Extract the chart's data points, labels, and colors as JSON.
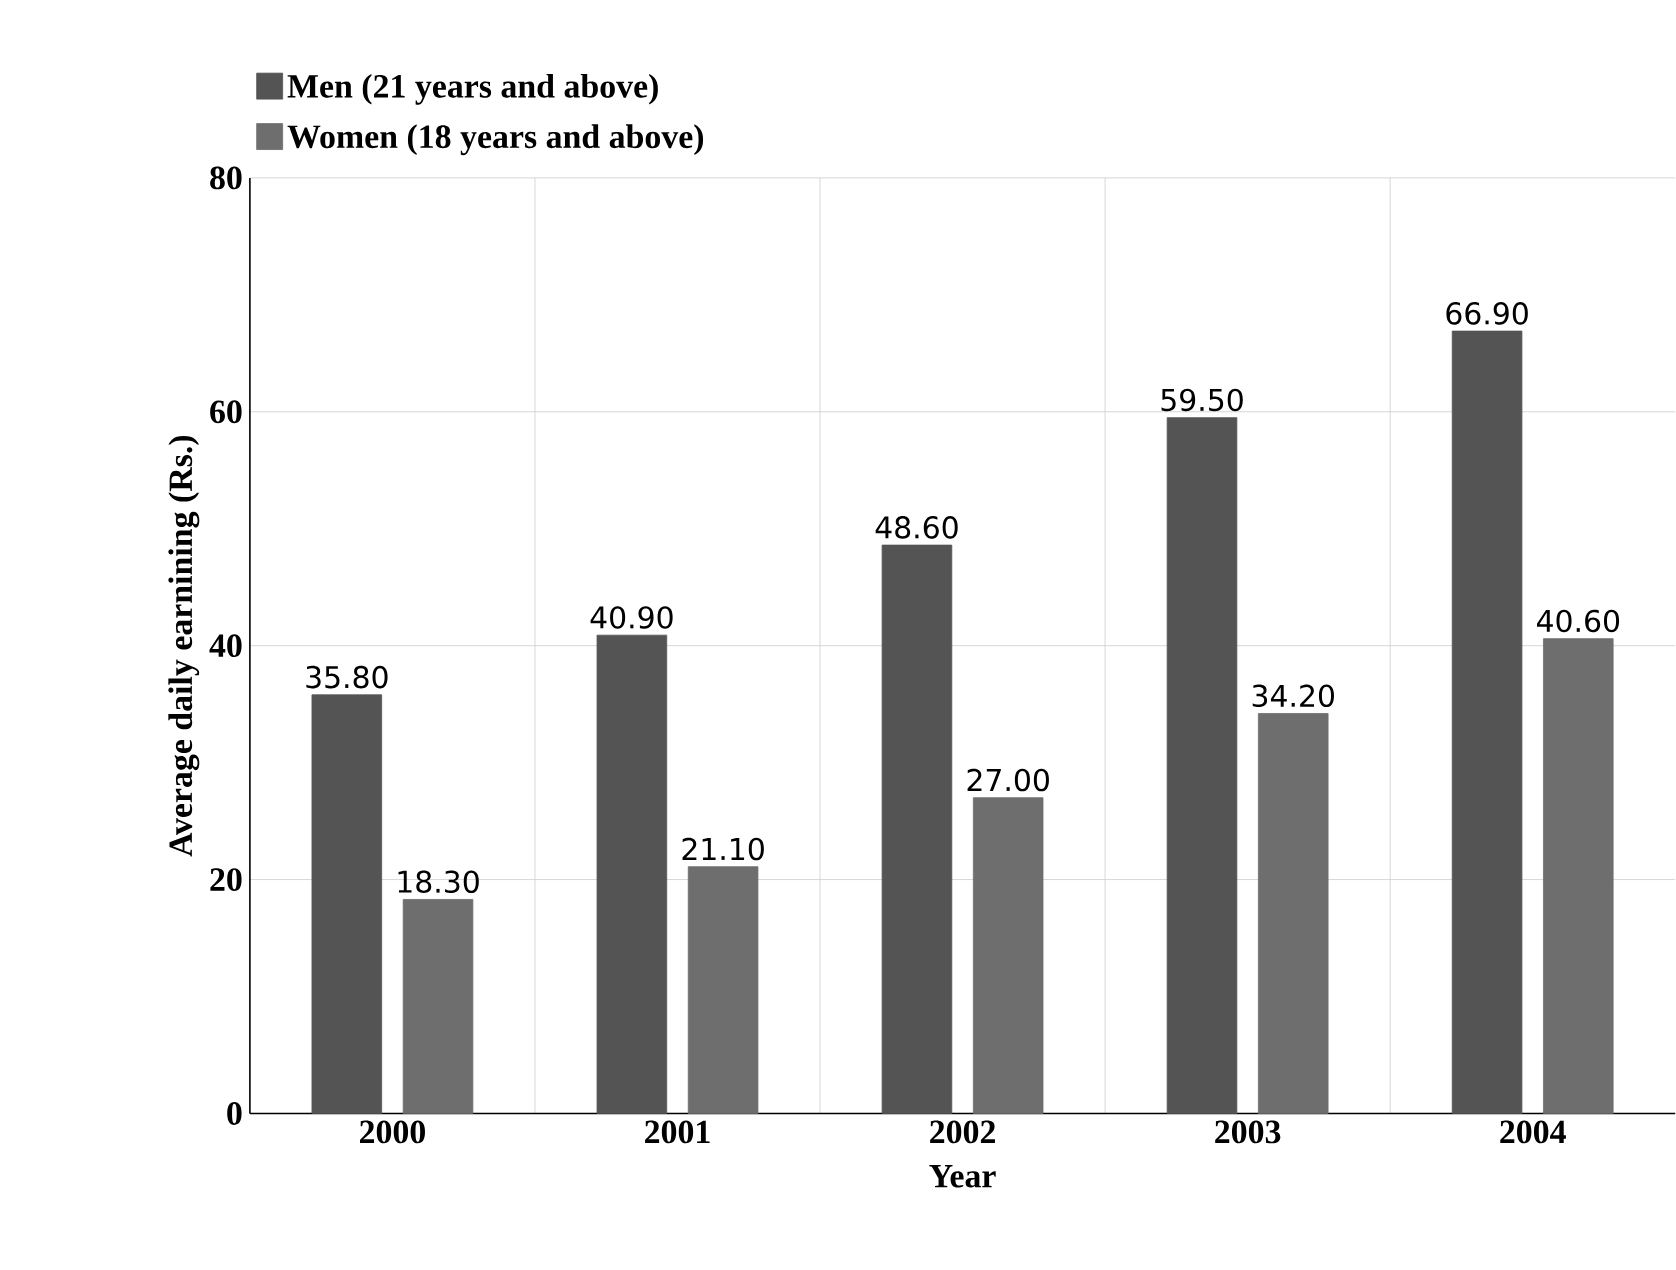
{
  "chart_data": {
    "type": "bar",
    "xlabel": "Year",
    "ylabel": "Average daily earnining (Rs.)",
    "categories": [
      "2000",
      "2001",
      "2002",
      "2003",
      "2004"
    ],
    "series": [
      {
        "name": "Men (21 years and above)",
        "color": "#545454",
        "values": [
          35.8,
          40.9,
          48.6,
          59.5,
          66.9
        ],
        "value_labels": [
          "35.80",
          "40.90",
          "48.60",
          "59.50",
          "66.90"
        ]
      },
      {
        "name": "Women (18 years and above)",
        "color": "#6e6e6e",
        "values": [
          18.3,
          21.1,
          27.0,
          34.2,
          40.6
        ],
        "value_labels": [
          "18.30",
          "21.10",
          "27.00",
          "34.20",
          "40.60"
        ]
      }
    ],
    "ylim": [
      0,
      80
    ],
    "yticks": [
      0,
      20,
      40,
      60,
      80
    ],
    "grid": true,
    "legend": "top left"
  }
}
